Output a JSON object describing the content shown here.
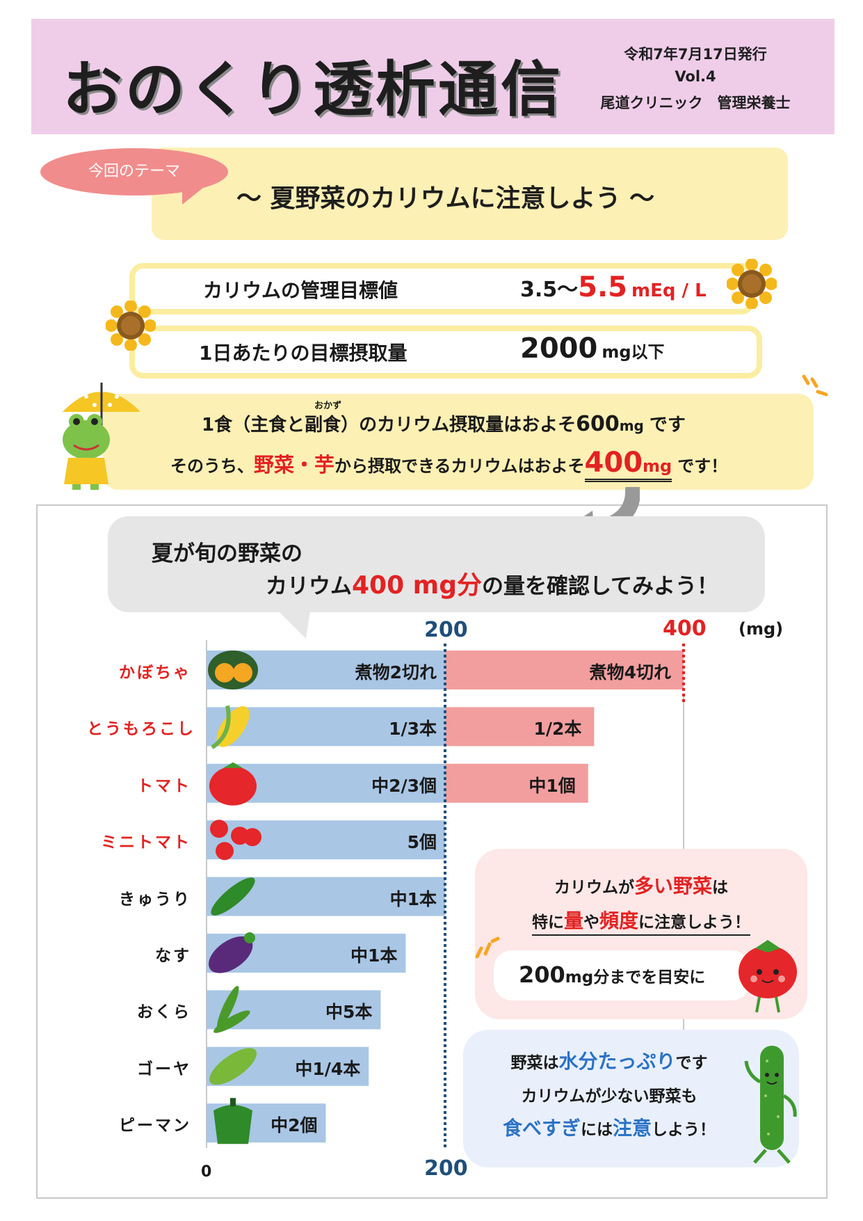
{
  "header": {
    "title": "おのくり透析通信",
    "issue_date": "令和7年7月17日発行",
    "volume": "Vol.4",
    "author": "尾道クリニック　管理栄養士"
  },
  "theme": {
    "tag": "今回のテーマ",
    "text": "～ 夏野菜のカリウムに注意しよう ～"
  },
  "targets": {
    "potassium_label": "カリウムの管理目標値",
    "potassium_low": "3.5～",
    "potassium_high": "5.5",
    "potassium_unit": "mEq / L",
    "intake_label": "1日あたりの目標摂取量",
    "intake_value": "2000",
    "intake_unit": "mg以下"
  },
  "intake": {
    "line1_a": "1食（主食と副食）のカリウム摂取量はおよそ",
    "line1_num": "600",
    "line1_unit": "mg",
    "line1_end": "です",
    "ruby": "おかず",
    "line2_a": "そのうち、",
    "line2_red": "野菜・芋",
    "line2_b": "から摂取できるカリウムはおよそ",
    "line2_num": "400",
    "line2_unit": "mg",
    "line2_end": "です！"
  },
  "bubble": {
    "line1": "夏が旬の野菜の",
    "line2_a": "カリウム",
    "line2_red": "400 mg分",
    "line2_b": "の量を確認してみよう！"
  },
  "chart_data": {
    "type": "bar",
    "orientation": "horizontal",
    "unit": "(mg)",
    "xlim": [
      0,
      400
    ],
    "ticks": [
      {
        "value": 0,
        "label": "0"
      },
      {
        "value": 200,
        "label": "200"
      },
      {
        "value": 400,
        "label": "400"
      }
    ],
    "categories": [
      "かぼちゃ",
      "とうもろこし",
      "トマト",
      "ミニトマト",
      "きゅうり",
      "なす",
      "おくら",
      "ゴーヤ",
      "ピーマン"
    ],
    "highlight_categories": [
      "かぼちゃ",
      "とうもろこし",
      "トマト",
      "ミニトマト"
    ],
    "series": [
      {
        "values": [
          200,
          200,
          200,
          200,
          200,
          167,
          146,
          136,
          100
        ],
        "labels": [
          "煮物2切れ",
          "1/3本",
          "中2/3個",
          "5個",
          "中1本",
          "中1本",
          "中5本",
          "中1/4本",
          "中2個"
        ],
        "color": "#a9c6e5"
      },
      {
        "values": [
          400,
          325,
          320,
          null,
          null,
          null,
          null,
          null,
          null
        ],
        "labels": [
          "煮物4切れ",
          "1/2本",
          "中1個",
          "",
          "",
          "",
          "",
          "",
          ""
        ],
        "color": "#f29e9e"
      }
    ]
  },
  "advice1": {
    "l1_a": "カリウムが",
    "l1_red": "多い野菜",
    "l1_b": "は",
    "l2_a": "特に",
    "l2_red1": "量",
    "l2_b": "や",
    "l2_red2": "頻度",
    "l2_c": "に注意しよう！",
    "inner_num": "200",
    "inner_text": "mg分までを目安に"
  },
  "advice2": {
    "l1_a": "野菜は",
    "l1_blue": "水分たっぷり",
    "l1_b": "です",
    "l2": "カリウムが少ない野菜も",
    "l3_blue1": "食べすぎ",
    "l3_a": "には",
    "l3_blue2": "注意",
    "l3_b": "しよう！"
  },
  "colors": {
    "header_bg": "#efcde9",
    "theme_bg": "#fdf0b5",
    "accent_red": "#e32222",
    "axis_blue": "#1f4e7a",
    "bar_blue": "#a9c6e5",
    "bar_pink": "#f29e9e"
  }
}
